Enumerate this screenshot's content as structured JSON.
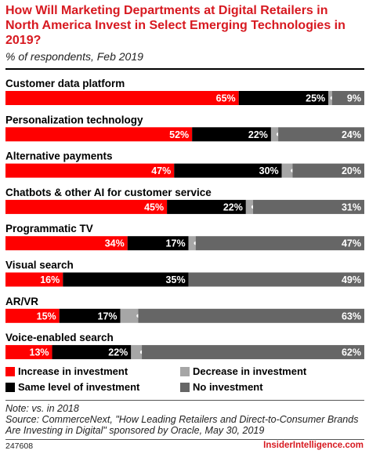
{
  "header": {
    "title": "How Will Marketing Departments at Digital Retailers in North America Invest in Select Emerging Technologies in 2019?",
    "subtitle": "% of respondents, Feb 2019"
  },
  "legend": [
    {
      "label": "Increase in investment",
      "color": "#ff0000"
    },
    {
      "label": "Decrease in investment",
      "color": "#a6a6a6"
    },
    {
      "label": "Same level of investment",
      "color": "#000000"
    },
    {
      "label": "No investment",
      "color": "#666666"
    }
  ],
  "colors": {
    "accent": "#d71920",
    "increase": "#ff0000",
    "same": "#000000",
    "decrease": "#a6a6a6",
    "none": "#666666"
  },
  "chart_data": {
    "type": "bar",
    "orientation": "horizontal",
    "stacked": true,
    "title": "How Will Marketing Departments at Digital Retailers in North America Invest in Select Emerging Technologies in 2019?",
    "subtitle": "% of respondents, Feb 2019",
    "unit": "%",
    "categories": [
      "Customer data platform",
      "Personalization technology",
      "Alternative payments",
      "Chatbots & other AI for customer service",
      "Programmatic TV",
      "Visual search",
      "AR/VR",
      "Voice-enabled search"
    ],
    "series": [
      {
        "name": "Increase in investment",
        "color": "#ff0000",
        "values": [
          65,
          52,
          47,
          45,
          34,
          16,
          15,
          13
        ]
      },
      {
        "name": "Same level of investment",
        "color": "#000000",
        "values": [
          25,
          22,
          30,
          22,
          17,
          35,
          17,
          22
        ]
      },
      {
        "name": "Decrease in investment",
        "color": "#a6a6a6",
        "values": [
          1,
          2,
          3,
          2,
          2,
          0,
          5,
          3
        ]
      },
      {
        "name": "No investment",
        "color": "#666666",
        "values": [
          9,
          24,
          20,
          31,
          47,
          49,
          63,
          62
        ]
      }
    ],
    "value_labels": [
      [
        "65%",
        "25%",
        "1%",
        "9%"
      ],
      [
        "52%",
        "22%",
        "2%",
        "24%"
      ],
      [
        "47%",
        "30%",
        "3%",
        "20%"
      ],
      [
        "45%",
        "22%",
        "2%",
        "31%"
      ],
      [
        "34%",
        "17%",
        "2%",
        "47%"
      ],
      [
        "16%",
        "35%",
        "",
        "49%"
      ],
      [
        "15%",
        "17%",
        "5%",
        "63%"
      ],
      [
        "13%",
        "22%",
        "3%",
        "62%"
      ]
    ],
    "xlim": [
      0,
      100
    ],
    "legend_position": "bottom"
  },
  "note": {
    "line1": "Note: vs. in 2018",
    "line2": "Source: CommerceNext, \"How Leading Retailers and Direct-to-Consumer Brands Are Investing in Digital\" sponsored by Oracle, May 30, 2019"
  },
  "footer": {
    "id": "247608",
    "brand": "InsiderIntelligence.com"
  }
}
